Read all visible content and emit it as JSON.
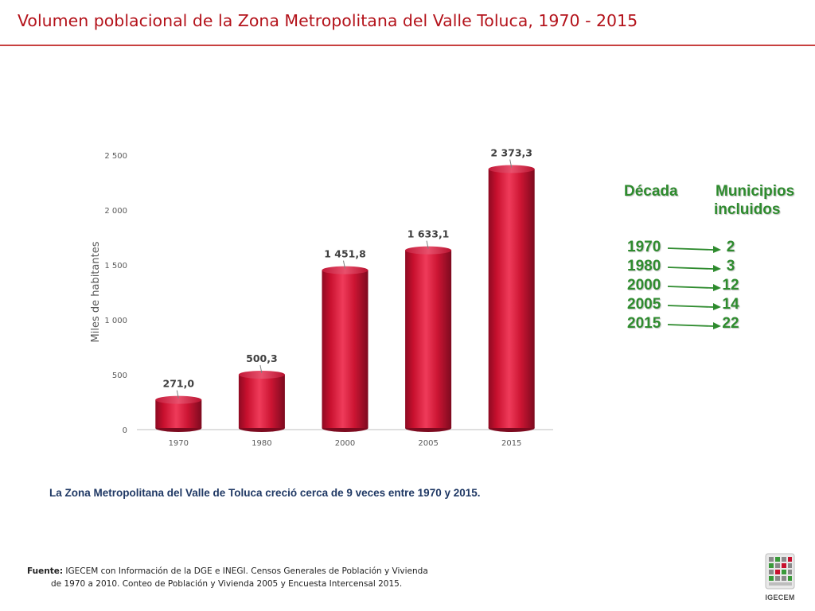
{
  "title": "Volumen poblacional de la  Zona Metropolitana del Valle Toluca, 1970 - 2015",
  "chart_data": {
    "type": "bar",
    "categories": [
      "1970",
      "1980",
      "2000",
      "2005",
      "2015"
    ],
    "values": [
      271.0,
      500.3,
      1451.8,
      1633.1,
      2373.3
    ],
    "data_labels": [
      "271,0",
      "500,3",
      "1 451,8",
      "1 633,1",
      "2 373,3"
    ],
    "ylabel": "Miles de habitantes",
    "ylim": [
      0,
      2500
    ],
    "yticks": [
      0,
      500,
      1000,
      1500,
      2000,
      2500
    ],
    "ytick_labels": [
      "0",
      "500",
      "1 000",
      "1 500",
      "2 000",
      "2 500"
    ],
    "grid": false,
    "bar_color": "#c8102e"
  },
  "legend_table": {
    "header_decade": "Década",
    "header_municipios_1": "Municipios",
    "header_municipios_2": "incluidos",
    "rows": [
      {
        "year": "1970",
        "count": "2"
      },
      {
        "year": "1980",
        "count": "3"
      },
      {
        "year": "2000",
        "count": "12"
      },
      {
        "year": "2005",
        "count": "14"
      },
      {
        "year": "2015",
        "count": "22"
      }
    ],
    "color": "#2e8b2e"
  },
  "caption": "La Zona Metropolitana del Valle de Toluca creció cerca de 9 veces entre 1970 y 2015.",
  "source": {
    "label": "Fuente:",
    "line1": "IGECEM con Información de la DGE e INEGI. Censos Generales de Población y Vivienda",
    "line2": "de 1970 a 2010. Conteo de Población y Vivienda 2005 y Encuesta Intercensal 2015."
  },
  "logo": {
    "text": "IGECEM"
  }
}
